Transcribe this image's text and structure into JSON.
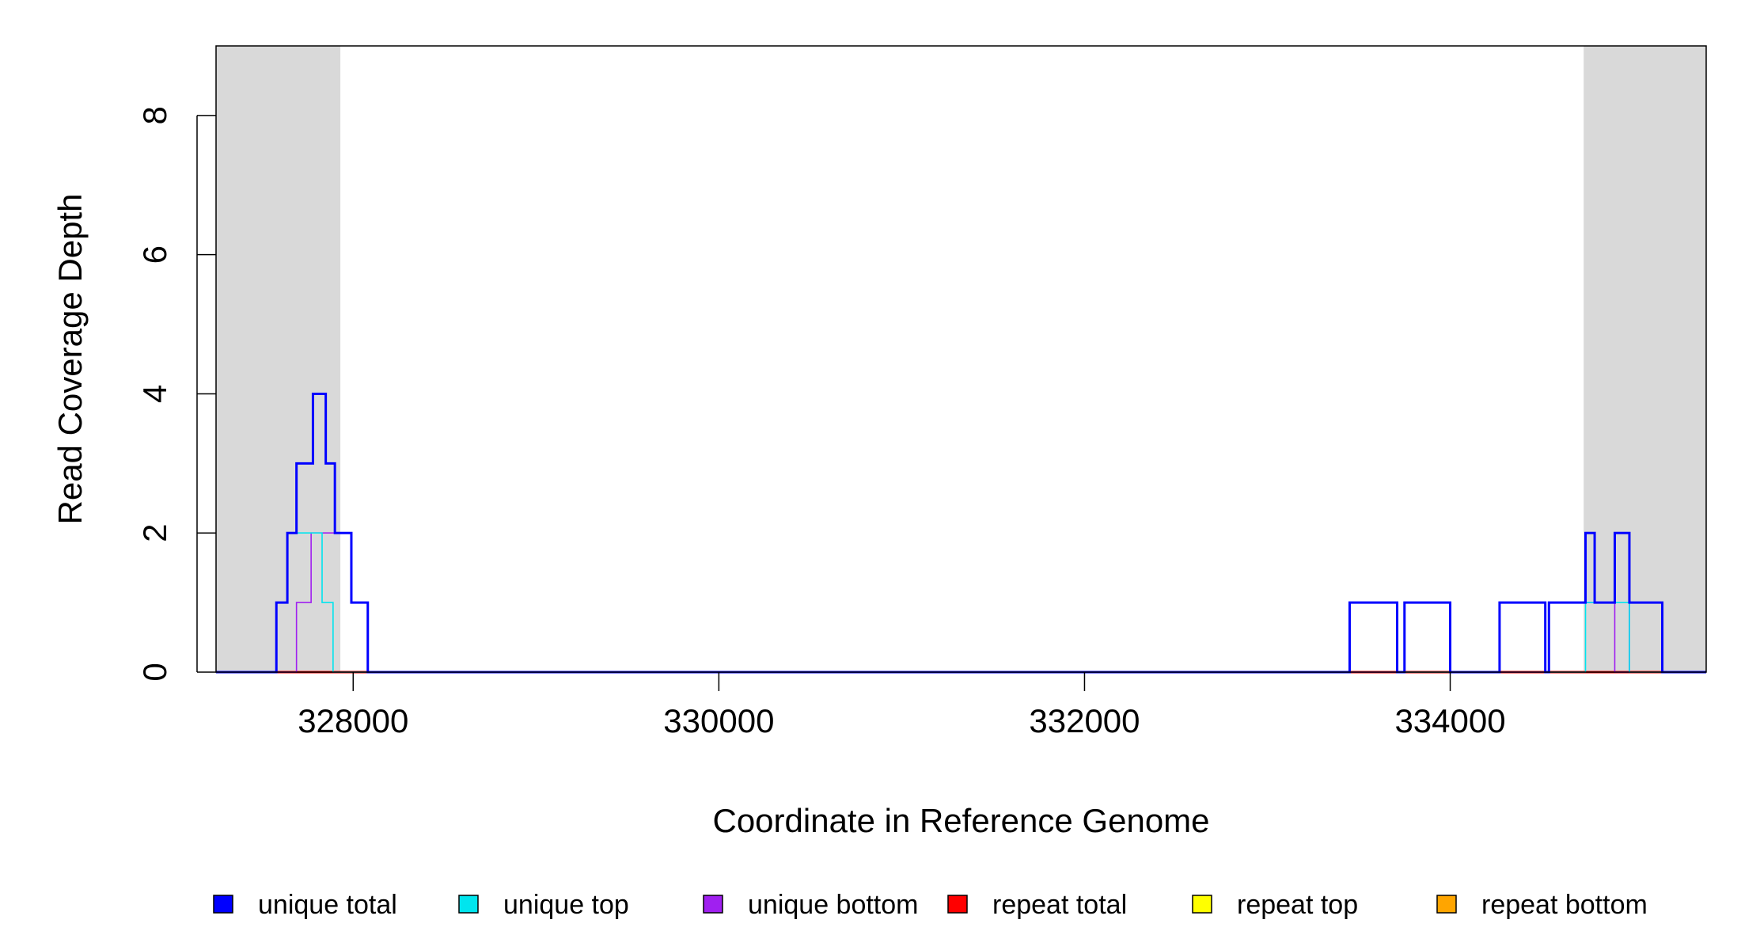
{
  "chart_data": {
    "type": "line",
    "xlabel": "Coordinate in Reference Genome",
    "ylabel": "Read Coverage Depth",
    "xlim": [
      327250,
      335400
    ],
    "ylim": [
      0,
      9
    ],
    "x_ticks": [
      328000,
      330000,
      332000,
      334000
    ],
    "x_tick_labels": [
      "328000",
      "330000",
      "332000",
      "334000"
    ],
    "y_ticks": [
      0,
      2,
      4,
      6,
      8
    ],
    "y_tick_labels": [
      "0",
      "2",
      "4",
      "6",
      "8"
    ],
    "grid": false,
    "legend_position": "bottom",
    "shaded_regions": [
      {
        "x0": 327250,
        "x1": 327930,
        "color": "#d9d9d9"
      },
      {
        "x0": 334730,
        "x1": 335400,
        "color": "#d9d9d9"
      }
    ],
    "series": [
      {
        "name": "unique total",
        "color": "#0000ff",
        "steps": [
          [
            327250,
            0
          ],
          [
            327580,
            1
          ],
          [
            327640,
            2
          ],
          [
            327690,
            3
          ],
          [
            327780,
            4
          ],
          [
            327850,
            3
          ],
          [
            327900,
            2
          ],
          [
            327990,
            1
          ],
          [
            328080,
            0
          ],
          [
            333450,
            1
          ],
          [
            333710,
            0
          ],
          [
            333750,
            1
          ],
          [
            334000,
            0
          ],
          [
            334270,
            1
          ],
          [
            334520,
            0
          ],
          [
            334540,
            1
          ],
          [
            334740,
            2
          ],
          [
            334790,
            1
          ],
          [
            334900,
            2
          ],
          [
            334980,
            1
          ],
          [
            335160,
            0
          ],
          [
            335400,
            0
          ]
        ]
      },
      {
        "name": "unique top",
        "color": "#00e5ee",
        "steps": [
          [
            327250,
            0
          ],
          [
            327580,
            1
          ],
          [
            327640,
            2
          ],
          [
            327830,
            1
          ],
          [
            327890,
            0
          ],
          [
            333450,
            1
          ],
          [
            333710,
            0
          ],
          [
            334270,
            1
          ],
          [
            334520,
            0
          ],
          [
            334740,
            1
          ],
          [
            334980,
            0
          ],
          [
            335400,
            0
          ]
        ]
      },
      {
        "name": "unique bottom",
        "color": "#a020f0",
        "steps": [
          [
            327250,
            0
          ],
          [
            327690,
            1
          ],
          [
            327770,
            2
          ],
          [
            327990,
            1
          ],
          [
            328080,
            0
          ],
          [
            333750,
            1
          ],
          [
            334000,
            0
          ],
          [
            334540,
            1
          ],
          [
            334900,
            0
          ],
          [
            334980,
            1
          ],
          [
            335160,
            0
          ],
          [
            335400,
            0
          ]
        ]
      },
      {
        "name": "repeat total",
        "color": "#ff0000",
        "steps": [
          [
            327250,
            0
          ],
          [
            335400,
            0
          ]
        ]
      },
      {
        "name": "repeat top",
        "color": "#ffff00",
        "steps": [
          [
            327250,
            0
          ],
          [
            335400,
            0
          ]
        ]
      },
      {
        "name": "repeat bottom",
        "color": "#ffa500",
        "steps": [
          [
            327250,
            0
          ],
          [
            335400,
            0
          ]
        ]
      }
    ]
  }
}
